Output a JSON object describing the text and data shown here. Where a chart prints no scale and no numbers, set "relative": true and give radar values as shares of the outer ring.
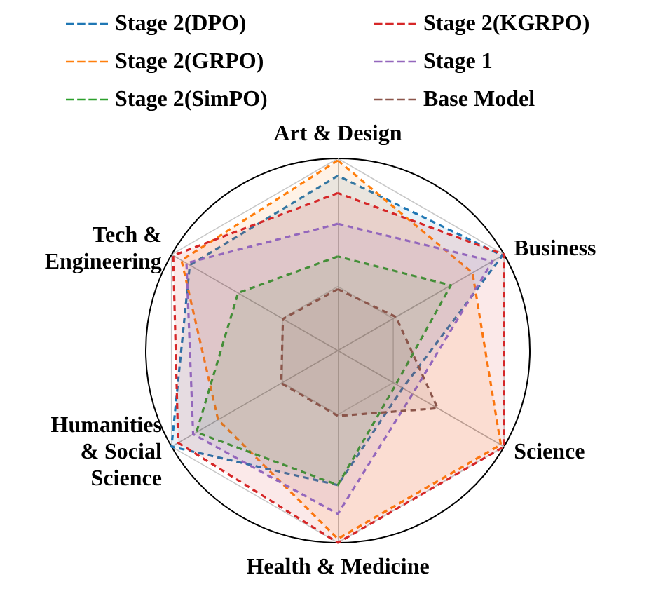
{
  "chart_data": {
    "type": "radar",
    "relative": true,
    "grid": true,
    "legend": "top",
    "marker": "none",
    "line_style": "dashed",
    "categories": [
      "Art & Design",
      "Business",
      "Science",
      "Health & Medicine",
      "Humanities\n& Social\nScience",
      "Tech &\nEngineering"
    ],
    "series": [
      {
        "name": "Stage 2(DPO)",
        "color": "#1f77b4",
        "values": [
          0.91,
          0.99,
          0.39,
          0.7,
          1.0,
          0.89
        ]
      },
      {
        "name": "Stage 2(GRPO)",
        "color": "#ff7f0e",
        "values": [
          0.99,
          0.81,
          0.98,
          0.98,
          0.72,
          0.94
        ]
      },
      {
        "name": "Stage 2(SimPO)",
        "color": "#2ca02c",
        "values": [
          0.49,
          0.68,
          0.35,
          0.7,
          0.85,
          0.6
        ]
      },
      {
        "name": "Stage 2(KGRPO)",
        "color": "#d62728",
        "values": [
          0.82,
          1.0,
          1.0,
          1.0,
          0.96,
          0.99
        ]
      },
      {
        "name": "Stage 1",
        "color": "#9467bd",
        "values": [
          0.66,
          0.93,
          0.45,
          0.85,
          0.87,
          0.91
        ]
      },
      {
        "name": "Base Model",
        "color": "#8c564b",
        "values": [
          0.32,
          0.35,
          0.6,
          0.34,
          0.34,
          0.33
        ]
      }
    ]
  }
}
